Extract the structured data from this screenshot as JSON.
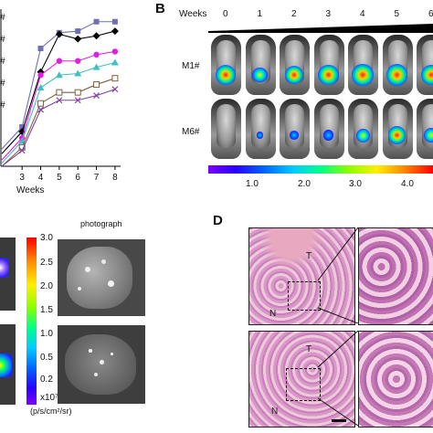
{
  "panelA": {
    "ytick_marks": [
      "#",
      "#",
      "#",
      "#",
      "#"
    ],
    "chart_data": {
      "type": "line",
      "xlabel": "Weeks",
      "x": [
        3,
        4,
        5,
        6,
        7,
        8
      ],
      "xlim": [
        2.5,
        8.3
      ],
      "ylim": [
        0,
        100
      ],
      "series": [
        {
          "marker": "square",
          "color": "#7070b0",
          "values": [
            25,
            75,
            85,
            86,
            92,
            92
          ]
        },
        {
          "marker": "diamond",
          "color": "#000000",
          "values": [
            22,
            60,
            84,
            81,
            83,
            86
          ]
        },
        {
          "marker": "circle",
          "color": "#e020e0",
          "values": [
            18,
            58,
            67,
            67,
            71,
            73
          ]
        },
        {
          "marker": "triangle",
          "color": "#40c0c0",
          "values": [
            16,
            50,
            58,
            59,
            63,
            66
          ]
        },
        {
          "marker": "open-square",
          "color": "#806040",
          "values": [
            12,
            40,
            47,
            47,
            52,
            56
          ]
        },
        {
          "marker": "x",
          "color": "#8040a0",
          "values": [
            10,
            36,
            42,
            42,
            45,
            49
          ]
        }
      ]
    }
  },
  "panelB": {
    "letter": "B",
    "weeks_label": "Weeks",
    "weeks": [
      "0",
      "1",
      "2",
      "3",
      "4",
      "5",
      "6"
    ],
    "rows": [
      {
        "label": "M1#",
        "signal": [
          0.9,
          0.6,
          0.8,
          0.9,
          0.95,
          0.95,
          0.9
        ]
      },
      {
        "label": "M6#",
        "signal": [
          0.0,
          0.1,
          0.2,
          0.3,
          0.5,
          0.75,
          0.6
        ]
      }
    ],
    "colorbar_ticks": [
      "1.0",
      "2.0",
      "3.0",
      "4.0"
    ]
  },
  "panelC": {
    "photo_label": "photograph",
    "colorbar_ticks": [
      "3.0",
      "2.5",
      "2.0",
      "1.5",
      "1.0",
      "0.5",
      "0.2"
    ],
    "colorbar_exp": "x10⁷",
    "colorbar_unit": "(p/s/cm²/sr)"
  },
  "panelD": {
    "letter": "D",
    "label_t": "T",
    "label_n": "N"
  }
}
